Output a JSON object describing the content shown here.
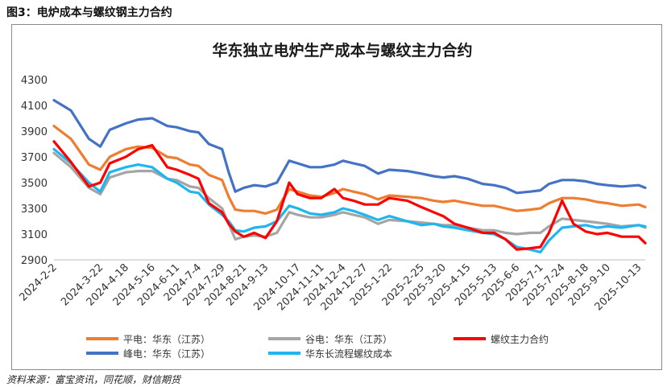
{
  "figure_label": "图3：电炉成本与螺纹钢主力合约",
  "source": "资料来源：富宝资讯，同花顺，财信期货",
  "chart_data": {
    "type": "line",
    "title": "华东独立电炉生产成本与螺纹主力合约",
    "ylim": [
      2900,
      4300
    ],
    "yticks": [
      2900,
      3100,
      3300,
      3500,
      3700,
      3900,
      4100,
      4300
    ],
    "xlim": [
      "2024-02-02",
      "2025-10-20"
    ],
    "xticks": [
      "2024-2-2",
      "2024-3-22",
      "2024-4-18",
      "2024-5-16",
      "2024-6-11",
      "2024-7-4",
      "2024-7-29",
      "2024-8-21",
      "2024-9-13",
      "2024-10-17",
      "2024-11-11",
      "2024-12-4",
      "2024-12-27",
      "2025-1-22",
      "2025-2-25",
      "2025-3-20",
      "2025-4-15",
      "2025-5-13",
      "2025-6-6",
      "2025-7-1",
      "2025-7-24",
      "2025-8-18",
      "2025-9-10",
      "2025-10-13"
    ],
    "legend_position": "bottom",
    "grid": false,
    "series": [
      {
        "name": "平电：华东（江苏）",
        "color": "#ED7D31",
        "x": [
          "2024-02-02",
          "2024-02-20",
          "2024-03-10",
          "2024-03-22",
          "2024-04-01",
          "2024-04-18",
          "2024-05-01",
          "2024-05-16",
          "2024-06-01",
          "2024-06-11",
          "2024-06-25",
          "2024-07-04",
          "2024-07-15",
          "2024-07-29",
          "2024-08-05",
          "2024-08-12",
          "2024-08-21",
          "2024-09-01",
          "2024-09-13",
          "2024-09-25",
          "2024-10-08",
          "2024-10-17",
          "2024-10-30",
          "2024-11-11",
          "2024-11-25",
          "2024-12-04",
          "2024-12-15",
          "2024-12-27",
          "2025-01-10",
          "2025-01-22",
          "2025-02-10",
          "2025-02-25",
          "2025-03-10",
          "2025-03-20",
          "2025-04-01",
          "2025-04-15",
          "2025-05-01",
          "2025-05-13",
          "2025-05-25",
          "2025-06-06",
          "2025-06-20",
          "2025-07-01",
          "2025-07-10",
          "2025-07-24",
          "2025-08-05",
          "2025-08-18",
          "2025-08-30",
          "2025-09-10",
          "2025-09-25",
          "2025-10-13",
          "2025-10-20"
        ],
        "values": [
          3940,
          3840,
          3640,
          3600,
          3700,
          3760,
          3780,
          3770,
          3700,
          3690,
          3640,
          3630,
          3560,
          3520,
          3390,
          3290,
          3280,
          3280,
          3260,
          3290,
          3450,
          3430,
          3400,
          3390,
          3420,
          3450,
          3430,
          3410,
          3370,
          3400,
          3390,
          3380,
          3360,
          3350,
          3360,
          3340,
          3320,
          3320,
          3300,
          3280,
          3290,
          3300,
          3340,
          3380,
          3380,
          3370,
          3350,
          3340,
          3320,
          3330,
          3310
        ]
      },
      {
        "name": "峰电：华东（江苏）",
        "color": "#4472C4",
        "x": [
          "2024-02-02",
          "2024-02-20",
          "2024-03-10",
          "2024-03-22",
          "2024-04-01",
          "2024-04-18",
          "2024-05-01",
          "2024-05-16",
          "2024-06-01",
          "2024-06-11",
          "2024-06-25",
          "2024-07-04",
          "2024-07-15",
          "2024-07-29",
          "2024-08-05",
          "2024-08-12",
          "2024-08-21",
          "2024-09-01",
          "2024-09-13",
          "2024-09-25",
          "2024-10-08",
          "2024-10-17",
          "2024-10-30",
          "2024-11-11",
          "2024-11-25",
          "2024-12-04",
          "2024-12-15",
          "2024-12-27",
          "2025-01-10",
          "2025-01-22",
          "2025-02-10",
          "2025-02-25",
          "2025-03-10",
          "2025-03-20",
          "2025-04-01",
          "2025-04-15",
          "2025-05-01",
          "2025-05-13",
          "2025-05-25",
          "2025-06-06",
          "2025-06-20",
          "2025-07-01",
          "2025-07-10",
          "2025-07-24",
          "2025-08-05",
          "2025-08-18",
          "2025-08-30",
          "2025-09-10",
          "2025-09-25",
          "2025-10-13",
          "2025-10-20"
        ],
        "values": [
          4140,
          4060,
          3840,
          3780,
          3910,
          3960,
          3990,
          4000,
          3940,
          3930,
          3900,
          3890,
          3800,
          3760,
          3580,
          3430,
          3460,
          3480,
          3470,
          3500,
          3670,
          3650,
          3620,
          3620,
          3640,
          3670,
          3650,
          3630,
          3570,
          3600,
          3590,
          3570,
          3550,
          3540,
          3550,
          3530,
          3490,
          3480,
          3460,
          3420,
          3430,
          3440,
          3490,
          3520,
          3520,
          3510,
          3490,
          3480,
          3470,
          3480,
          3460
        ]
      },
      {
        "name": "谷电：华东（江苏）",
        "color": "#A5A5A5",
        "x": [
          "2024-02-02",
          "2024-02-20",
          "2024-03-10",
          "2024-03-22",
          "2024-04-01",
          "2024-04-18",
          "2024-05-01",
          "2024-05-16",
          "2024-06-01",
          "2024-06-11",
          "2024-06-25",
          "2024-07-04",
          "2024-07-15",
          "2024-07-29",
          "2024-08-05",
          "2024-08-12",
          "2024-08-21",
          "2024-09-01",
          "2024-09-13",
          "2024-09-25",
          "2024-10-08",
          "2024-10-17",
          "2024-10-30",
          "2024-11-11",
          "2024-11-25",
          "2024-12-04",
          "2024-12-15",
          "2024-12-27",
          "2025-01-10",
          "2025-01-22",
          "2025-02-10",
          "2025-02-25",
          "2025-03-10",
          "2025-03-20",
          "2025-04-01",
          "2025-04-15",
          "2025-05-01",
          "2025-05-13",
          "2025-05-25",
          "2025-06-06",
          "2025-06-20",
          "2025-07-01",
          "2025-07-10",
          "2025-07-24",
          "2025-08-05",
          "2025-08-18",
          "2025-08-30",
          "2025-09-10",
          "2025-09-25",
          "2025-10-13",
          "2025-10-20"
        ],
        "values": [
          3730,
          3620,
          3460,
          3410,
          3540,
          3580,
          3590,
          3590,
          3530,
          3520,
          3470,
          3460,
          3380,
          3300,
          3180,
          3060,
          3080,
          3090,
          3080,
          3110,
          3270,
          3250,
          3230,
          3230,
          3250,
          3270,
          3250,
          3230,
          3180,
          3210,
          3200,
          3190,
          3180,
          3170,
          3170,
          3150,
          3130,
          3130,
          3110,
          3100,
          3110,
          3110,
          3160,
          3220,
          3210,
          3200,
          3190,
          3180,
          3160,
          3170,
          3150
        ]
      },
      {
        "name": "华东长流程螺纹成本",
        "color": "#1FB6F0",
        "x": [
          "2024-02-02",
          "2024-02-20",
          "2024-03-10",
          "2024-03-22",
          "2024-04-01",
          "2024-04-18",
          "2024-05-01",
          "2024-05-16",
          "2024-06-01",
          "2024-06-11",
          "2024-06-25",
          "2024-07-04",
          "2024-07-15",
          "2024-07-29",
          "2024-08-05",
          "2024-08-12",
          "2024-08-21",
          "2024-09-01",
          "2024-09-13",
          "2024-09-25",
          "2024-10-08",
          "2024-10-17",
          "2024-10-30",
          "2024-11-11",
          "2024-11-25",
          "2024-12-04",
          "2024-12-15",
          "2024-12-27",
          "2025-01-10",
          "2025-01-22",
          "2025-02-10",
          "2025-02-25",
          "2025-03-10",
          "2025-03-20",
          "2025-04-01",
          "2025-04-15",
          "2025-05-01",
          "2025-05-13",
          "2025-05-25",
          "2025-06-06",
          "2025-06-20",
          "2025-07-01",
          "2025-07-10",
          "2025-07-24",
          "2025-08-05",
          "2025-08-18",
          "2025-08-30",
          "2025-09-10",
          "2025-09-25",
          "2025-10-13",
          "2025-10-20"
        ],
        "values": [
          3760,
          3650,
          3500,
          3430,
          3580,
          3620,
          3640,
          3620,
          3530,
          3500,
          3430,
          3420,
          3330,
          3250,
          3200,
          3130,
          3120,
          3150,
          3160,
          3200,
          3320,
          3300,
          3260,
          3250,
          3270,
          3300,
          3280,
          3250,
          3210,
          3240,
          3200,
          3170,
          3180,
          3160,
          3150,
          3130,
          3110,
          3100,
          3060,
          3000,
          2980,
          2960,
          3050,
          3150,
          3160,
          3170,
          3150,
          3160,
          3150,
          3170,
          3160
        ]
      },
      {
        "name": "螺纹主力合约",
        "color": "#FF0000",
        "x": [
          "2024-02-02",
          "2024-02-20",
          "2024-03-10",
          "2024-03-22",
          "2024-04-01",
          "2024-04-18",
          "2024-05-01",
          "2024-05-16",
          "2024-06-01",
          "2024-06-11",
          "2024-06-25",
          "2024-07-04",
          "2024-07-15",
          "2024-07-29",
          "2024-08-05",
          "2024-08-12",
          "2024-08-21",
          "2024-09-01",
          "2024-09-13",
          "2024-09-25",
          "2024-10-08",
          "2024-10-17",
          "2024-10-30",
          "2024-11-11",
          "2024-11-25",
          "2024-12-04",
          "2024-12-15",
          "2024-12-27",
          "2025-01-10",
          "2025-01-22",
          "2025-02-10",
          "2025-02-25",
          "2025-03-10",
          "2025-03-20",
          "2025-04-01",
          "2025-04-15",
          "2025-05-01",
          "2025-05-13",
          "2025-05-25",
          "2025-06-06",
          "2025-06-20",
          "2025-07-01",
          "2025-07-10",
          "2025-07-24",
          "2025-08-05",
          "2025-08-18",
          "2025-08-30",
          "2025-09-10",
          "2025-09-25",
          "2025-10-13",
          "2025-10-20"
        ],
        "values": [
          3820,
          3660,
          3470,
          3500,
          3650,
          3700,
          3760,
          3790,
          3620,
          3600,
          3560,
          3530,
          3340,
          3270,
          3180,
          3120,
          3080,
          3110,
          3070,
          3200,
          3500,
          3410,
          3380,
          3380,
          3450,
          3380,
          3360,
          3330,
          3330,
          3380,
          3360,
          3310,
          3270,
          3240,
          3180,
          3150,
          3110,
          3110,
          3060,
          2980,
          2990,
          3000,
          3110,
          3360,
          3180,
          3120,
          3100,
          3110,
          3080,
          3080,
          3030
        ]
      }
    ]
  }
}
